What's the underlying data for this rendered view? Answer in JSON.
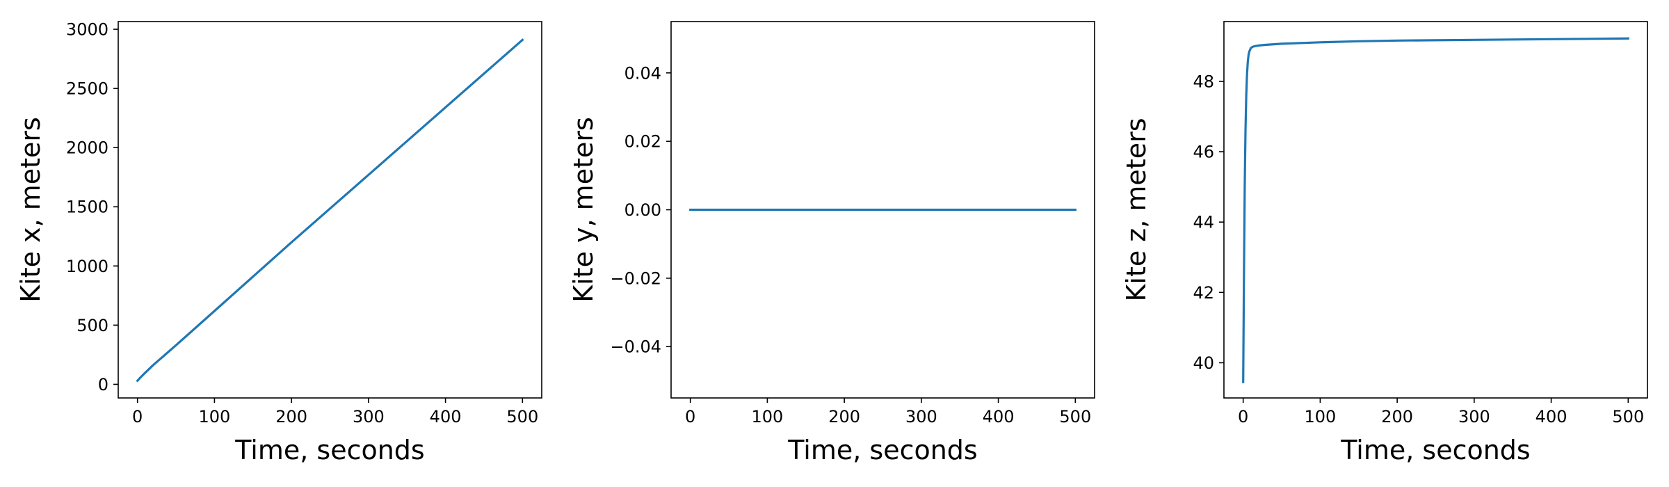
{
  "chart_data": [
    {
      "type": "line",
      "xlabel": "Time, seconds",
      "ylabel": "Kite x, meters",
      "xlim": [
        -25,
        525
      ],
      "ylim": [
        -115,
        3065
      ],
      "xticks": [
        0,
        100,
        200,
        300,
        400,
        500
      ],
      "yticks": [
        0,
        500,
        1000,
        1500,
        2000,
        2500,
        3000
      ],
      "xtick_labels": [
        "0",
        "100",
        "200",
        "300",
        "400",
        "500"
      ],
      "ytick_labels": [
        "0",
        "500",
        "1000",
        "1500",
        "2000",
        "2500",
        "3000"
      ],
      "grid": false,
      "series": [
        {
          "color": "#1f77b4",
          "x": [
            0,
            2,
            5,
            8,
            12,
            20,
            50,
            100,
            200,
            300,
            400,
            500
          ],
          "y": [
            30,
            45,
            65,
            85,
            110,
            160,
            330,
            620,
            1200,
            1770,
            2340,
            2910
          ]
        }
      ]
    },
    {
      "type": "line",
      "xlabel": "Time, seconds",
      "ylabel": "Kite y, meters",
      "xlim": [
        -25,
        525
      ],
      "ylim": [
        -0.055,
        0.055
      ],
      "xticks": [
        0,
        100,
        200,
        300,
        400,
        500
      ],
      "yticks": [
        -0.04,
        -0.02,
        0.0,
        0.02,
        0.04
      ],
      "xtick_labels": [
        "0",
        "100",
        "200",
        "300",
        "400",
        "500"
      ],
      "ytick_labels": [
        "−0.04",
        "−0.02",
        "0.00",
        "0.02",
        "0.04"
      ],
      "grid": false,
      "series": [
        {
          "color": "#1f77b4",
          "x": [
            0,
            500
          ],
          "y": [
            0,
            0
          ]
        }
      ]
    },
    {
      "type": "line",
      "xlabel": "Time, seconds",
      "ylabel": "Kite z, meters",
      "xlim": [
        -25,
        525
      ],
      "ylim": [
        39.0,
        49.7
      ],
      "xticks": [
        0,
        100,
        200,
        300,
        400,
        500
      ],
      "yticks": [
        40,
        42,
        44,
        46,
        48
      ],
      "xtick_labels": [
        "0",
        "100",
        "200",
        "300",
        "400",
        "500"
      ],
      "ytick_labels": [
        "40",
        "42",
        "44",
        "46",
        "48"
      ],
      "grid": false,
      "series": [
        {
          "color": "#1f77b4",
          "x": [
            0,
            1,
            2,
            3,
            4,
            5,
            6,
            7,
            8,
            10,
            12,
            15,
            20,
            30,
            50,
            100,
            150,
            200,
            300,
            400,
            500
          ],
          "y": [
            39.45,
            42.5,
            45.0,
            46.6,
            47.6,
            48.2,
            48.55,
            48.75,
            48.85,
            48.95,
            48.98,
            49.0,
            49.02,
            49.04,
            49.07,
            49.11,
            49.14,
            49.16,
            49.18,
            49.2,
            49.22
          ]
        }
      ]
    }
  ]
}
